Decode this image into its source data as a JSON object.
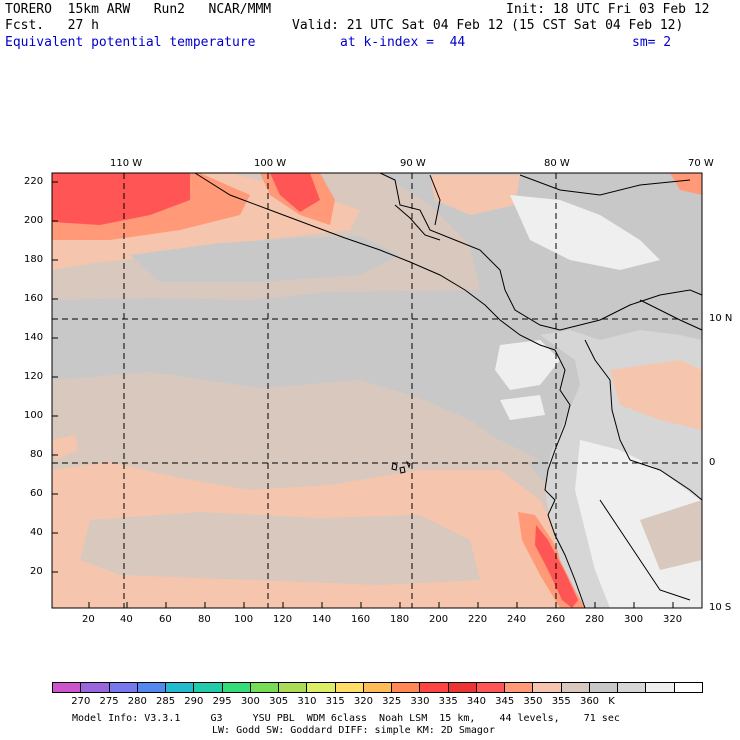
{
  "header": {
    "line1_left": "TORERO  15km ARW   Run2   NCAR/MMM",
    "line1_right": "Init: 18 UTC Fri 03 Feb 12",
    "line2_left": "Fcst.   27 h",
    "line2_right": "Valid: 21 UTC Sat 04 Feb 12 (15 CST Sat 04 Feb 12)",
    "line3_field": "Equivalent potential temperature",
    "line3_level": "at k-index =  44",
    "line3_smooth": "sm= 2"
  },
  "map": {
    "top_lon_labels": [
      "110 W",
      "100 W",
      "90 W",
      "80 W",
      "70 W"
    ],
    "right_lat_labels": [
      "10 N",
      "0",
      "10 S"
    ],
    "y_grid_labels": [
      "220",
      "200",
      "180",
      "160",
      "140",
      "120",
      "100",
      "80",
      "60",
      "40",
      "20"
    ],
    "x_grid_labels": [
      "20",
      "40",
      "60",
      "80",
      "100",
      "120",
      "140",
      "160",
      "180",
      "200",
      "220",
      "240",
      "260",
      "280",
      "300",
      "320"
    ]
  },
  "colorbar": {
    "colors": [
      "#cc55cc",
      "#9966dd",
      "#7777ee",
      "#5588ee",
      "#22bbcc",
      "#22ccaa",
      "#33dd77",
      "#77dd55",
      "#aadd55",
      "#ddee66",
      "#ffdd66",
      "#ffbb55",
      "#ff8855",
      "#ff4444",
      "#ee3333",
      "#ff5555",
      "#ff9977",
      "#f5c6ad",
      "#d8c8bd",
      "#c8c8c8",
      "#d6d6d6",
      "#efefef",
      "#ffffff"
    ],
    "labels": [
      "270",
      "275",
      "280",
      "285",
      "290",
      "295",
      "300",
      "305",
      "310",
      "315",
      "320",
      "325",
      "330",
      "335",
      "340",
      "345",
      "350",
      "355",
      "360",
      "K"
    ],
    "fill_colors": {
      "land_light": "#efefef",
      "gray_355": "#c8c8c8",
      "tan_340": "#d8c8bd",
      "peach_335": "#f5c6ad",
      "salmon_330": "#ff9977",
      "red_325": "#ff5555"
    }
  },
  "footer": {
    "line1": "Model Info: V3.3.1     G3     YSU PBL  WDM 6class  Noah LSM  15 km,    44 levels,    71 sec",
    "line2": "LW: Godd SW: Goddard DIFF: simple KM: 2D Smagor"
  }
}
